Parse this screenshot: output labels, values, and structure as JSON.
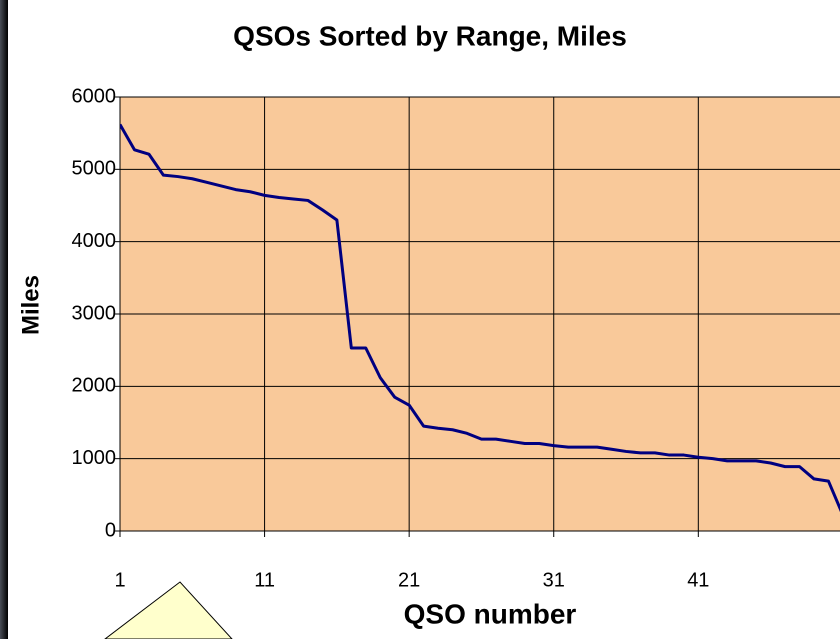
{
  "chart_data": {
    "type": "line",
    "title": "QSOs Sorted by Range, Miles",
    "x_label": "QSO number",
    "y_label": "Miles",
    "x": [
      1,
      2,
      3,
      4,
      5,
      6,
      7,
      8,
      9,
      10,
      11,
      12,
      13,
      14,
      15,
      16,
      17,
      18,
      19,
      20,
      21,
      22,
      23,
      24,
      25,
      26,
      27,
      28,
      29,
      30,
      31,
      32,
      33,
      34,
      35,
      36,
      37,
      38,
      39,
      40,
      41,
      42,
      43,
      44,
      45,
      46,
      47,
      48,
      49,
      50,
      51
    ],
    "values": [
      5620,
      5270,
      5210,
      4920,
      4900,
      4870,
      4820,
      4770,
      4720,
      4690,
      4640,
      4610,
      4590,
      4570,
      4440,
      4300,
      2530,
      2530,
      2120,
      1850,
      1740,
      1450,
      1420,
      1400,
      1350,
      1270,
      1270,
      1240,
      1210,
      1210,
      1180,
      1160,
      1160,
      1160,
      1130,
      1100,
      1080,
      1080,
      1050,
      1050,
      1020,
      1000,
      970,
      970,
      970,
      940,
      890,
      890,
      720,
      690,
      220
    ],
    "color": "#000080",
    "background": "#f9c99a",
    "xlim": [
      1,
      50.8
    ],
    "xticks": [
      1,
      11,
      21,
      31,
      41
    ],
    "ylim": [
      0,
      6000
    ],
    "yticks": [
      0,
      1000,
      2000,
      3000,
      4000,
      5000,
      6000
    ],
    "grid": true
  }
}
